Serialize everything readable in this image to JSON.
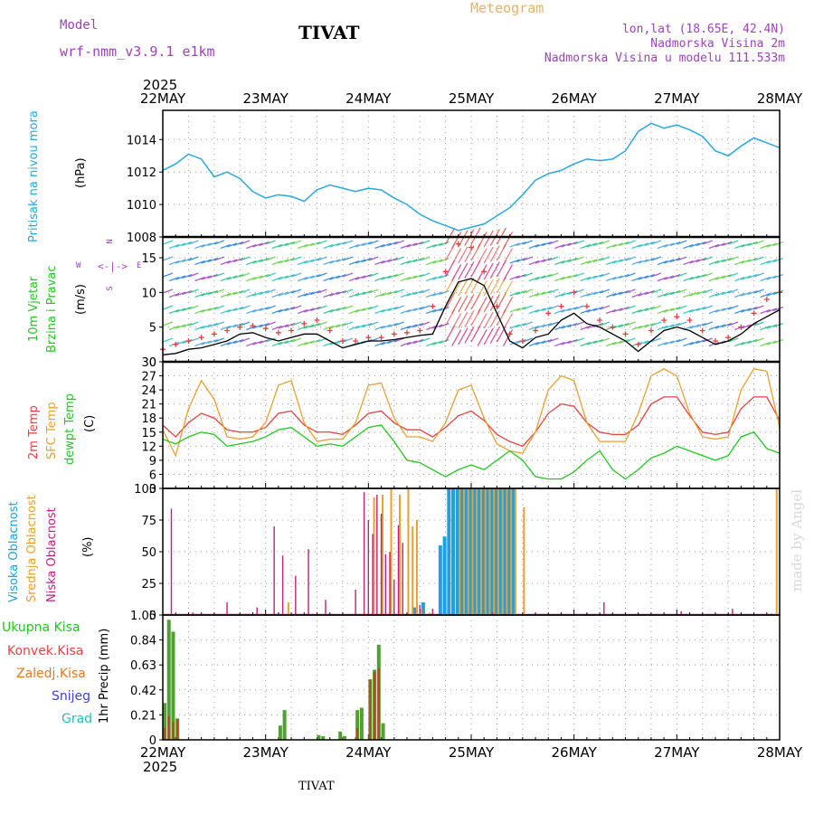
{
  "header": {
    "model_label": "Model",
    "model_name": "wrf-nmm_v3.9.1 e1km",
    "station": "TIVAT",
    "chart_title": "Meteogram",
    "lonlat": "lon,lat (18.65E, 42.4N)",
    "elevation": "Nadmorska Visina 2m",
    "model_elevation": "Nadmorska Visina u modelu 111.533m",
    "watermark": "made by Angel",
    "footer_station": "TIVAT"
  },
  "colors": {
    "pressure": "#29a8e0",
    "temp2m": "#e84040",
    "sfc": "#e8a030",
    "dewpt": "#20c820",
    "high_cloud": "#20a0e0",
    "mid_cloud": "#e8a030",
    "low_cloud": "#c02080",
    "precip_total": "#50a030",
    "precip_conv": "#e84040",
    "precip_frozen": "#e87820",
    "snow": "#4040e0",
    "hail": "#20c0c0",
    "model_text": "#a040c0",
    "title_text": "#e8b060"
  },
  "time_axis": {
    "year": "2025",
    "labels": [
      "22MAY",
      "23MAY",
      "24MAY",
      "25MAY",
      "26MAY",
      "27MAY",
      "28MAY"
    ]
  },
  "compass": {
    "n": "N",
    "w": "W",
    "e": "E",
    "s": "S"
  },
  "panels": {
    "pressure": {
      "ylabel1": "Pritisak na nivou mora",
      "ylabel2": "(hPa)"
    },
    "wind": {
      "ylabel1": "10m Vjetar",
      "ylabel2": "Brzina i Pravac",
      "ylabel3": "(m/s)"
    },
    "temp": {
      "ylabel1": "2m Temp",
      "ylabel2": "SFC Temp",
      "ylabel3": "dewpt Temp",
      "ylabel4": "(C)"
    },
    "cloud": {
      "ylabel1": "Visoka Oblacnost",
      "ylabel2": "Srednja Oblacnost",
      "ylabel3": "Niska Oblacnost",
      "ylabel4": "(%)"
    },
    "precip": {
      "ylabel": "1hr Precip (mm)",
      "legend": [
        "Ukupna Kisa",
        "Konvek.Kisa",
        "Zaledj.Kisa",
        "Snijeg",
        "Grad"
      ]
    }
  },
  "chart_data": [
    {
      "type": "line",
      "xlabel": "",
      "ylabel": "(hPa)",
      "ylim": [
        1008,
        1015.8
      ],
      "yticks": [
        "1008",
        "1010",
        "1012",
        "1014"
      ],
      "grid": true,
      "series": [
        {
          "name": "Pritisak na nivou mora",
          "x": [
            0,
            3,
            6,
            9,
            12,
            15,
            18,
            21,
            24,
            27,
            30,
            33,
            36,
            39,
            42,
            45,
            48,
            51,
            54,
            57,
            60,
            63,
            66,
            69,
            72,
            75,
            78,
            81,
            84,
            87,
            90,
            93,
            96,
            99,
            102,
            105,
            108,
            111,
            114,
            117,
            120,
            123,
            126,
            129,
            132,
            135,
            138,
            141,
            144
          ],
          "y": [
            1012.1,
            1012.5,
            1013.1,
            1012.8,
            1011.7,
            1012.0,
            1011.6,
            1010.8,
            1010.4,
            1010.6,
            1010.5,
            1010.2,
            1010.9,
            1011.2,
            1011.0,
            1010.8,
            1011.0,
            1010.9,
            1010.4,
            1010.0,
            1009.4,
            1009.0,
            1008.7,
            1008.4,
            1008.6,
            1008.8,
            1009.3,
            1009.8,
            1010.6,
            1011.5,
            1011.9,
            1012.1,
            1012.5,
            1012.8,
            1012.7,
            1012.8,
            1013.3,
            1014.5,
            1015.0,
            1014.7,
            1014.9,
            1014.6,
            1014.2,
            1013.3,
            1013.0,
            1013.6,
            1014.1,
            1013.8,
            1013.5
          ]
        }
      ]
    },
    {
      "type": "line",
      "xlabel": "",
      "ylabel": "(m/s)",
      "ylim": [
        0,
        18
      ],
      "yticks": [
        "0",
        "5",
        "10",
        "15"
      ],
      "grid": true,
      "series": [
        {
          "name": "wind speed",
          "x": [
            0,
            3,
            6,
            9,
            12,
            15,
            18,
            21,
            24,
            27,
            30,
            33,
            36,
            39,
            42,
            45,
            48,
            51,
            54,
            57,
            60,
            63,
            66,
            69,
            72,
            75,
            78,
            81,
            84,
            87,
            90,
            93,
            96,
            99,
            102,
            105,
            108,
            111,
            114,
            117,
            120,
            123,
            126,
            129,
            132,
            135,
            138,
            141,
            144
          ],
          "y": [
            1.0,
            1.2,
            1.8,
            2.0,
            2.5,
            3.0,
            4.0,
            4.2,
            3.5,
            3.0,
            3.5,
            4.0,
            4.0,
            3.0,
            2.0,
            2.5,
            3.0,
            3.0,
            3.2,
            3.5,
            3.8,
            4.0,
            8.0,
            11.5,
            12.0,
            11.0,
            7.0,
            3.0,
            2.0,
            3.5,
            4.0,
            6.0,
            7.0,
            5.5,
            5.0,
            4.0,
            3.0,
            1.5,
            3.0,
            4.5,
            5.0,
            4.5,
            3.5,
            2.5,
            3.0,
            4.0,
            5.5,
            6.5,
            7.5
          ]
        },
        {
          "name": "gust",
          "x": [
            0,
            3,
            6,
            9,
            12,
            15,
            18,
            21,
            24,
            27,
            30,
            33,
            36,
            39,
            42,
            45,
            48,
            51,
            54,
            57,
            60,
            63,
            66,
            69,
            72,
            75,
            78,
            81,
            84,
            87,
            90,
            93,
            96,
            99,
            102,
            105,
            108,
            111,
            114,
            117,
            120,
            123,
            126,
            129,
            132,
            135,
            138,
            141,
            144
          ],
          "y": [
            1.8,
            2.5,
            3.0,
            3.5,
            4.0,
            4.5,
            5.0,
            5.2,
            4.8,
            4.2,
            4.5,
            5.5,
            6.0,
            4.5,
            3.0,
            3.0,
            3.5,
            3.5,
            4.0,
            4.2,
            4.5,
            8.0,
            13.0,
            17.0,
            16.5,
            13.0,
            8.0,
            4.0,
            3.0,
            4.5,
            7.0,
            8.0,
            10.0,
            8.0,
            6.0,
            5.0,
            4.0,
            2.5,
            4.5,
            6.0,
            6.5,
            6.0,
            4.5,
            3.0,
            3.5,
            5.0,
            7.0,
            9.0,
            10.0
          ]
        }
      ]
    },
    {
      "type": "line",
      "xlabel": "",
      "ylabel": "(C)",
      "ylim": [
        3,
        30
      ],
      "yticks": [
        "3",
        "6",
        "9",
        "12",
        "15",
        "18",
        "21",
        "24",
        "27",
        "30"
      ],
      "grid": true,
      "series": [
        {
          "name": "2m Temp",
          "x": [
            0,
            3,
            6,
            9,
            12,
            15,
            18,
            21,
            24,
            27,
            30,
            33,
            36,
            39,
            42,
            45,
            48,
            51,
            54,
            57,
            60,
            63,
            66,
            69,
            72,
            75,
            78,
            81,
            84,
            87,
            90,
            93,
            96,
            99,
            102,
            105,
            108,
            111,
            114,
            117,
            120,
            123,
            126,
            129,
            132,
            135,
            138,
            141,
            144
          ],
          "y": [
            16.5,
            14.0,
            17.0,
            19.0,
            18.0,
            15.5,
            15.0,
            15.0,
            16.0,
            19.0,
            19.5,
            16.5,
            15.0,
            15.0,
            14.5,
            16.5,
            19.0,
            19.5,
            17.0,
            15.5,
            15.5,
            14.0,
            16.0,
            18.5,
            19.5,
            17.5,
            14.5,
            13.0,
            12.0,
            15.0,
            19.0,
            21.0,
            20.5,
            17.0,
            15.0,
            14.5,
            14.5,
            16.5,
            21.0,
            22.5,
            22.5,
            18.5,
            15.0,
            14.5,
            15.0,
            20.0,
            22.5,
            22.5,
            17.5
          ]
        },
        {
          "name": "SFC Temp",
          "x": [
            0,
            3,
            6,
            9,
            12,
            15,
            18,
            21,
            24,
            27,
            30,
            33,
            36,
            39,
            42,
            45,
            48,
            51,
            54,
            57,
            60,
            63,
            66,
            69,
            72,
            75,
            78,
            81,
            84,
            87,
            90,
            93,
            96,
            99,
            102,
            105,
            108,
            111,
            114,
            117,
            120,
            123,
            126,
            129,
            132,
            135,
            138,
            141,
            144
          ],
          "y": [
            15.5,
            10.0,
            20.0,
            26.0,
            22.0,
            14.0,
            13.5,
            14.0,
            17.0,
            25.0,
            26.0,
            17.0,
            13.0,
            13.5,
            13.5,
            17.0,
            25.0,
            25.5,
            18.0,
            14.0,
            14.0,
            13.0,
            17.0,
            24.0,
            25.0,
            18.0,
            12.5,
            11.0,
            10.5,
            15.0,
            24.0,
            27.0,
            26.0,
            17.0,
            13.0,
            13.0,
            13.0,
            19.0,
            27.0,
            28.5,
            27.0,
            19.0,
            14.0,
            13.5,
            14.0,
            24.0,
            28.5,
            28.0,
            16.0
          ]
        },
        {
          "name": "dewpt Temp",
          "x": [
            0,
            3,
            6,
            9,
            12,
            15,
            18,
            21,
            24,
            27,
            30,
            33,
            36,
            39,
            42,
            45,
            48,
            51,
            54,
            57,
            60,
            63,
            66,
            69,
            72,
            75,
            78,
            81,
            84,
            87,
            90,
            93,
            96,
            99,
            102,
            105,
            108,
            111,
            114,
            117,
            120,
            123,
            126,
            129,
            132,
            135,
            138,
            141,
            144
          ],
          "y": [
            13.5,
            12.5,
            14.0,
            15.0,
            14.5,
            12.0,
            12.5,
            13.0,
            14.0,
            15.5,
            16.0,
            14.0,
            12.0,
            12.5,
            12.0,
            14.0,
            16.0,
            16.5,
            13.0,
            9.0,
            8.5,
            7.0,
            5.5,
            7.0,
            8.0,
            7.0,
            9.0,
            11.0,
            9.0,
            5.5,
            5.0,
            5.0,
            6.5,
            9.0,
            11.0,
            7.0,
            5.0,
            7.0,
            9.5,
            10.5,
            12.0,
            11.0,
            10.0,
            9.0,
            10.0,
            14.0,
            15.0,
            11.5,
            10.5
          ]
        }
      ]
    },
    {
      "type": "bar",
      "xlabel": "",
      "ylabel": "(%)",
      "ylim": [
        0,
        100
      ],
      "yticks": [
        "0",
        "25",
        "50",
        "75",
        "100"
      ],
      "grid": true,
      "series": [
        {
          "name": "Niska Oblacnost",
          "x": [
            2,
            7,
            15,
            22,
            26,
            28,
            31,
            34,
            38,
            45,
            47,
            48,
            49,
            50,
            51,
            52,
            53,
            54,
            55,
            56,
            60,
            63,
            77,
            80,
            103,
            121,
            133,
            142
          ],
          "y": [
            84,
            2,
            10,
            6,
            70,
            47,
            31,
            52,
            12,
            20,
            97,
            75,
            64,
            95,
            80,
            48,
            50,
            28,
            71,
            57,
            8,
            5,
            2,
            1,
            10,
            3,
            5,
            1
          ]
        },
        {
          "name": "Srednja Oblacnost",
          "x": [
            29,
            49,
            51,
            53,
            55,
            57,
            58,
            59,
            60,
            62,
            69,
            70,
            71,
            72,
            73,
            74,
            75,
            76,
            77,
            78,
            79,
            80,
            81,
            82,
            84,
            143
          ],
          "y": [
            10,
            93,
            95,
            100,
            95,
            100,
            70,
            75,
            5,
            2,
            100,
            100,
            100,
            100,
            100,
            100,
            100,
            100,
            100,
            100,
            100,
            100,
            100,
            100,
            85,
            100
          ]
        },
        {
          "name": "Visoka Oblacnost",
          "x": [
            59,
            61,
            65,
            66,
            67,
            68,
            69,
            70,
            71,
            72,
            73,
            74,
            75,
            76,
            77,
            78,
            79,
            80,
            81,
            82
          ],
          "y": [
            6,
            10,
            55,
            62,
            100,
            100,
            100,
            100,
            100,
            100,
            100,
            100,
            100,
            100,
            100,
            100,
            100,
            100,
            100,
            100
          ]
        }
      ]
    },
    {
      "type": "bar",
      "xlabel": "",
      "ylabel": "1hr Precip (mm)",
      "ylim": [
        0,
        1.05
      ],
      "yticks": [
        "0",
        "0.21",
        "0.42",
        "0.63",
        "0.84",
        "1.05"
      ],
      "grid": true,
      "series": [
        {
          "name": "Ukupna Kisa",
          "x": [
            0,
            1,
            2,
            3,
            27,
            28,
            36,
            37,
            41,
            42,
            45,
            46,
            48,
            49,
            50,
            51
          ],
          "y": [
            0.31,
            1.01,
            0.91,
            0.18,
            0.12,
            0.25,
            0.04,
            0.03,
            0.07,
            0.03,
            0.25,
            0.27,
            0.51,
            0.59,
            0.8,
            0.14
          ]
        },
        {
          "name": "Konvek.Kisa",
          "x": [
            0,
            1,
            2,
            3,
            45,
            48,
            49,
            50
          ],
          "y": [
            0.1,
            0.2,
            0.15,
            0.17,
            0.1,
            0.5,
            0.57,
            0.6
          ]
        }
      ]
    }
  ]
}
